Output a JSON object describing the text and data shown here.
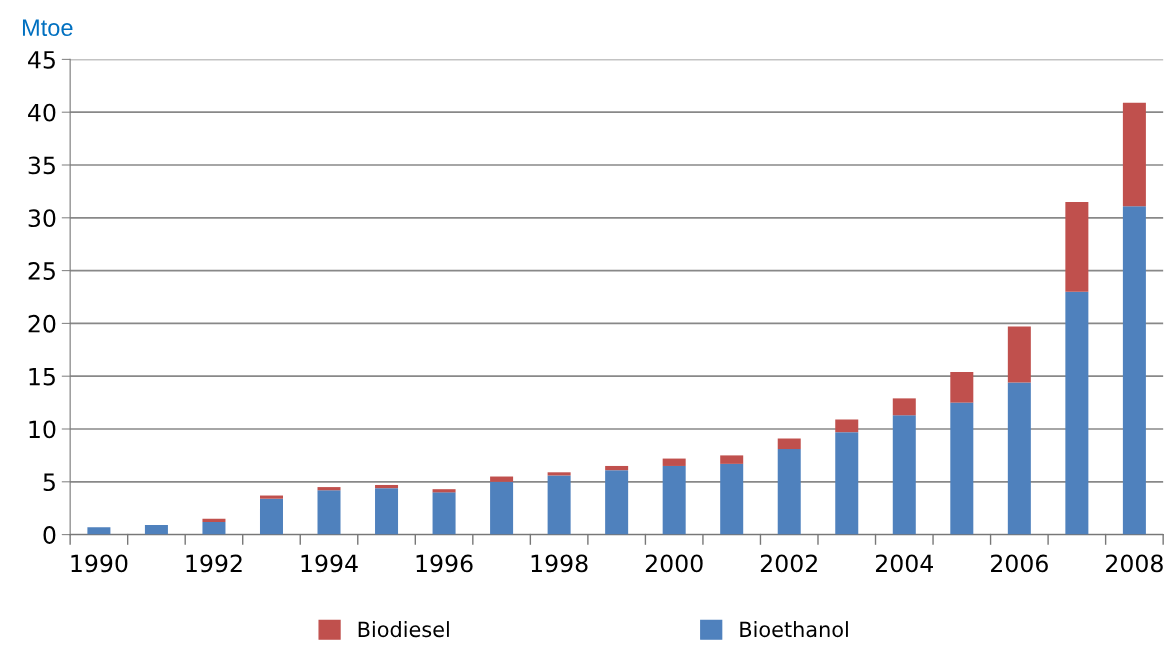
{
  "chart_data": {
    "type": "bar",
    "stacked": true,
    "ylabel": "Mtoe",
    "categories": [
      "1990",
      null,
      "1992",
      null,
      "1994",
      null,
      "1996",
      null,
      "1998",
      null,
      "2000",
      null,
      "2002",
      null,
      "2004",
      null,
      "2006",
      null,
      "2008"
    ],
    "series": [
      {
        "name": "Bioethanol",
        "color": "#4f81bd",
        "values": [
          0.7,
          0.9,
          1.2,
          3.4,
          4.2,
          4.4,
          4.0,
          5.0,
          5.6,
          6.1,
          6.5,
          6.7,
          8.1,
          9.7,
          11.3,
          12.5,
          14.4,
          23.0,
          31.1
        ]
      },
      {
        "name": "Biodiesel",
        "color": "#c0504d",
        "values": [
          0,
          0,
          0.3,
          0.3,
          0.3,
          0.3,
          0.3,
          0.5,
          0.3,
          0.4,
          0.7,
          0.8,
          1.0,
          1.2,
          1.6,
          2.9,
          5.3,
          8.5,
          9.8
        ]
      }
    ],
    "ylim": [
      0,
      45
    ],
    "yticks": [
      0,
      5,
      10,
      15,
      20,
      25,
      30,
      35,
      40,
      45
    ],
    "grid": "y",
    "legend": "bottom"
  }
}
